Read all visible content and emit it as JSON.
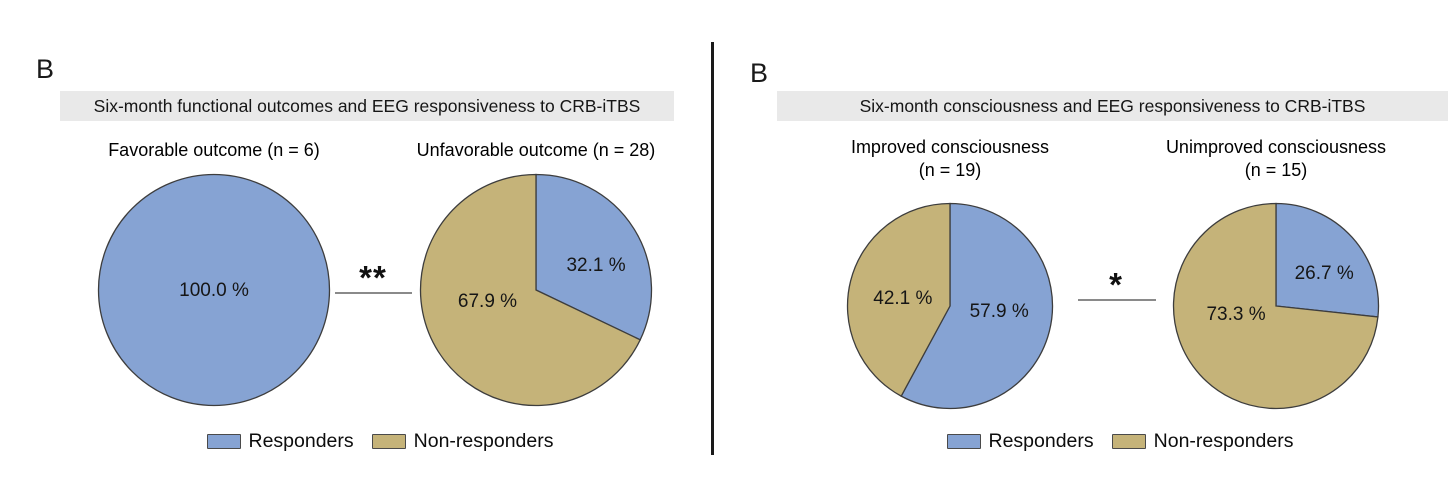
{
  "colors": {
    "responders": "#86A3D3",
    "non_responders": "#C5B379",
    "wedge_edge": "#3d3d3d",
    "header_bg": "#E9E9E9",
    "sig_line": "#8a8a8a",
    "divider": "#1a1a1a"
  },
  "chart_data": [
    {
      "type": "pie",
      "panel_label": "B",
      "header": "Six-month functional outcomes and EEG responsiveness to CRB-iTBS",
      "significance": "**",
      "legend": [
        "Responders",
        "Non-responders"
      ],
      "legend_position": "bottom-center",
      "pies": [
        {
          "title_lines": [
            "Favorable outcome (n = 6)"
          ],
          "slices": [
            {
              "series": "Responders",
              "value": 100.0,
              "label": "100.0 %",
              "color": "responders",
              "label_offset": [
                0,
                0.01
              ]
            }
          ]
        },
        {
          "title_lines": [
            "Unfavorable outcome (n = 28)"
          ],
          "slices": [
            {
              "series": "Responders",
              "value": 32.1,
              "label": "32.1 %",
              "color": "responders",
              "label_offset": [
                0.52,
                -0.21
              ]
            },
            {
              "series": "Non-responders",
              "value": 67.9,
              "label": "67.9 %",
              "color": "non_responders",
              "label_offset": [
                -0.42,
                0.1
              ]
            }
          ]
        }
      ]
    },
    {
      "type": "pie",
      "panel_label": "B",
      "header": "Six-month consciousness and EEG responsiveness to CRB-iTBS",
      "significance": "*",
      "legend": [
        "Responders",
        "Non-responders"
      ],
      "legend_position": "bottom-center",
      "pies": [
        {
          "title_lines": [
            "Improved consciousness",
            "(n = 19)"
          ],
          "slices": [
            {
              "series": "Responders",
              "value": 57.9,
              "label": "57.9 %",
              "color": "responders",
              "label_offset": [
                0.48,
                0.06
              ]
            },
            {
              "series": "Non-responders",
              "value": 42.1,
              "label": "42.1 %",
              "color": "non_responders",
              "label_offset": [
                -0.46,
                -0.07
              ]
            }
          ]
        },
        {
          "title_lines": [
            "Unimproved consciousness",
            "(n = 15)"
          ],
          "slices": [
            {
              "series": "Responders",
              "value": 26.7,
              "label": "26.7 %",
              "color": "responders",
              "label_offset": [
                0.47,
                -0.31
              ]
            },
            {
              "series": "Non-responders",
              "value": 73.3,
              "label": "73.3 %",
              "color": "non_responders",
              "label_offset": [
                -0.39,
                0.09
              ]
            }
          ]
        }
      ]
    }
  ]
}
